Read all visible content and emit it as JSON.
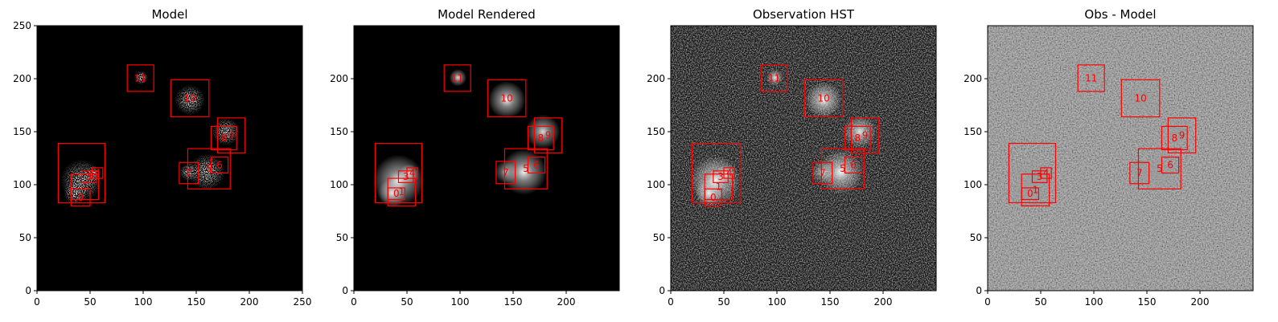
{
  "colors": {
    "box": "#ff0000",
    "axis": "#000000"
  },
  "chart_data": [
    {
      "type": "heatmap",
      "title": "Model",
      "xlim": [
        0,
        250
      ],
      "ylim": [
        0,
        250
      ],
      "xticks": [
        0,
        50,
        100,
        150,
        200,
        250
      ],
      "yticks": [
        0,
        50,
        100,
        150,
        200,
        250
      ],
      "style": "model",
      "background": "#000000",
      "boxes": [
        {
          "label": "",
          "x0": 20,
          "y0": 83,
          "x1": 64,
          "y1": 139
        },
        {
          "label": "0",
          "x0": 32,
          "y0": 80,
          "x1": 50,
          "y1": 96
        },
        {
          "label": "1",
          "x0": 32,
          "y0": 86,
          "x1": 58,
          "y1": 110
        },
        {
          "label": "3",
          "x0": 42,
          "y0": 102,
          "x1": 56,
          "y1": 113
        },
        {
          "label": "4",
          "x0": 52,
          "y0": 106,
          "x1": 62,
          "y1": 116
        },
        {
          "label": "7",
          "x0": 134,
          "y0": 101,
          "x1": 152,
          "y1": 121
        },
        {
          "label": "5",
          "x0": 142,
          "y0": 96,
          "x1": 182,
          "y1": 134
        },
        {
          "label": "6",
          "x0": 164,
          "y0": 111,
          "x1": 180,
          "y1": 126
        },
        {
          "label": "8",
          "x0": 164,
          "y0": 133,
          "x1": 188,
          "y1": 155
        },
        {
          "label": "9",
          "x0": 170,
          "y0": 130,
          "x1": 196,
          "y1": 163
        },
        {
          "label": "10",
          "x0": 126,
          "y0": 164,
          "x1": 162,
          "y1": 199
        },
        {
          "label": "11",
          "x0": 85,
          "y0": 188,
          "x1": 110,
          "y1": 213
        }
      ]
    },
    {
      "type": "heatmap",
      "title": "Model Rendered",
      "xlim": [
        0,
        250
      ],
      "ylim": [
        0,
        250
      ],
      "xticks": [
        0,
        50,
        100,
        150,
        200
      ],
      "yticks": [
        0,
        50,
        100,
        150,
        200
      ],
      "style": "rendered",
      "background": "#000000",
      "boxes": [
        {
          "label": "",
          "x0": 20,
          "y0": 83,
          "x1": 64,
          "y1": 139
        },
        {
          "label": "0",
          "x0": 32,
          "y0": 86,
          "x1": 48,
          "y1": 97
        },
        {
          "label": "1",
          "x0": 32,
          "y0": 80,
          "x1": 58,
          "y1": 106
        },
        {
          "label": "3",
          "x0": 42,
          "y0": 102,
          "x1": 56,
          "y1": 113
        },
        {
          "label": "4",
          "x0": 50,
          "y0": 106,
          "x1": 60,
          "y1": 116
        },
        {
          "label": "7",
          "x0": 134,
          "y0": 101,
          "x1": 152,
          "y1": 122
        },
        {
          "label": "5",
          "x0": 142,
          "y0": 96,
          "x1": 182,
          "y1": 134
        },
        {
          "label": "6",
          "x0": 164,
          "y0": 111,
          "x1": 180,
          "y1": 126
        },
        {
          "label": "8",
          "x0": 164,
          "y0": 133,
          "x1": 188,
          "y1": 155
        },
        {
          "label": "9",
          "x0": 170,
          "y0": 130,
          "x1": 196,
          "y1": 163
        },
        {
          "label": "10",
          "x0": 126,
          "y0": 164,
          "x1": 162,
          "y1": 199
        },
        {
          "label": "11",
          "x0": 85,
          "y0": 188,
          "x1": 110,
          "y1": 213
        }
      ]
    },
    {
      "type": "heatmap",
      "title": "Observation HST",
      "xlim": [
        0,
        250
      ],
      "ylim": [
        0,
        250
      ],
      "xticks": [
        0,
        50,
        100,
        150,
        200
      ],
      "yticks": [
        0,
        50,
        100,
        150,
        200
      ],
      "style": "observation",
      "background": "#0d0d0d",
      "boxes": [
        {
          "label": "",
          "x0": 20,
          "y0": 83,
          "x1": 66,
          "y1": 139
        },
        {
          "label": "0",
          "x0": 32,
          "y0": 80,
          "x1": 48,
          "y1": 96
        },
        {
          "label": "1",
          "x0": 32,
          "y0": 86,
          "x1": 58,
          "y1": 110
        },
        {
          "label": "3",
          "x0": 40,
          "y0": 102,
          "x1": 54,
          "y1": 113
        },
        {
          "label": "4",
          "x0": 50,
          "y0": 106,
          "x1": 60,
          "y1": 116
        },
        {
          "label": "7",
          "x0": 134,
          "y0": 101,
          "x1": 152,
          "y1": 121
        },
        {
          "label": "5",
          "x0": 142,
          "y0": 96,
          "x1": 182,
          "y1": 134
        },
        {
          "label": "6",
          "x0": 164,
          "y0": 111,
          "x1": 180,
          "y1": 126
        },
        {
          "label": "8",
          "x0": 164,
          "y0": 133,
          "x1": 188,
          "y1": 155
        },
        {
          "label": "9",
          "x0": 170,
          "y0": 130,
          "x1": 196,
          "y1": 163
        },
        {
          "label": "10",
          "x0": 126,
          "y0": 164,
          "x1": 162,
          "y1": 199
        },
        {
          "label": "11",
          "x0": 85,
          "y0": 188,
          "x1": 110,
          "y1": 213
        }
      ]
    },
    {
      "type": "heatmap",
      "title": "Obs - Model",
      "xlim": [
        0,
        250
      ],
      "ylim": [
        0,
        250
      ],
      "xticks": [
        0,
        50,
        100,
        150,
        200
      ],
      "yticks": [
        0,
        50,
        100,
        150,
        200
      ],
      "style": "residual",
      "background": "#7a7a7a",
      "boxes": [
        {
          "label": "",
          "x0": 20,
          "y0": 83,
          "x1": 64,
          "y1": 139
        },
        {
          "label": "0",
          "x0": 32,
          "y0": 86,
          "x1": 48,
          "y1": 97
        },
        {
          "label": "1",
          "x0": 32,
          "y0": 80,
          "x1": 58,
          "y1": 110
        },
        {
          "label": "3",
          "x0": 42,
          "y0": 102,
          "x1": 56,
          "y1": 113
        },
        {
          "label": "4",
          "x0": 50,
          "y0": 106,
          "x1": 60,
          "y1": 116
        },
        {
          "label": "7",
          "x0": 134,
          "y0": 101,
          "x1": 152,
          "y1": 121
        },
        {
          "label": "5",
          "x0": 142,
          "y0": 96,
          "x1": 182,
          "y1": 134
        },
        {
          "label": "6",
          "x0": 164,
          "y0": 111,
          "x1": 180,
          "y1": 126
        },
        {
          "label": "8",
          "x0": 164,
          "y0": 133,
          "x1": 188,
          "y1": 155
        },
        {
          "label": "9",
          "x0": 170,
          "y0": 130,
          "x1": 196,
          "y1": 163
        },
        {
          "label": "10",
          "x0": 126,
          "y0": 164,
          "x1": 162,
          "y1": 199
        },
        {
          "label": "11",
          "x0": 85,
          "y0": 188,
          "x1": 110,
          "y1": 213
        }
      ]
    }
  ],
  "sources": [
    {
      "x": 42,
      "y": 104,
      "r": 18,
      "amp": 1.0
    },
    {
      "x": 36,
      "y": 92,
      "r": 10,
      "amp": 0.9
    },
    {
      "x": 52,
      "y": 110,
      "r": 7,
      "amp": 0.8
    },
    {
      "x": 160,
      "y": 112,
      "r": 16,
      "amp": 1.0
    },
    {
      "x": 143,
      "y": 112,
      "r": 8,
      "amp": 0.7
    },
    {
      "x": 178,
      "y": 150,
      "r": 12,
      "amp": 0.9
    },
    {
      "x": 144,
      "y": 180,
      "r": 13,
      "amp": 1.0
    },
    {
      "x": 98,
      "y": 201,
      "r": 6,
      "amp": 0.9
    }
  ]
}
